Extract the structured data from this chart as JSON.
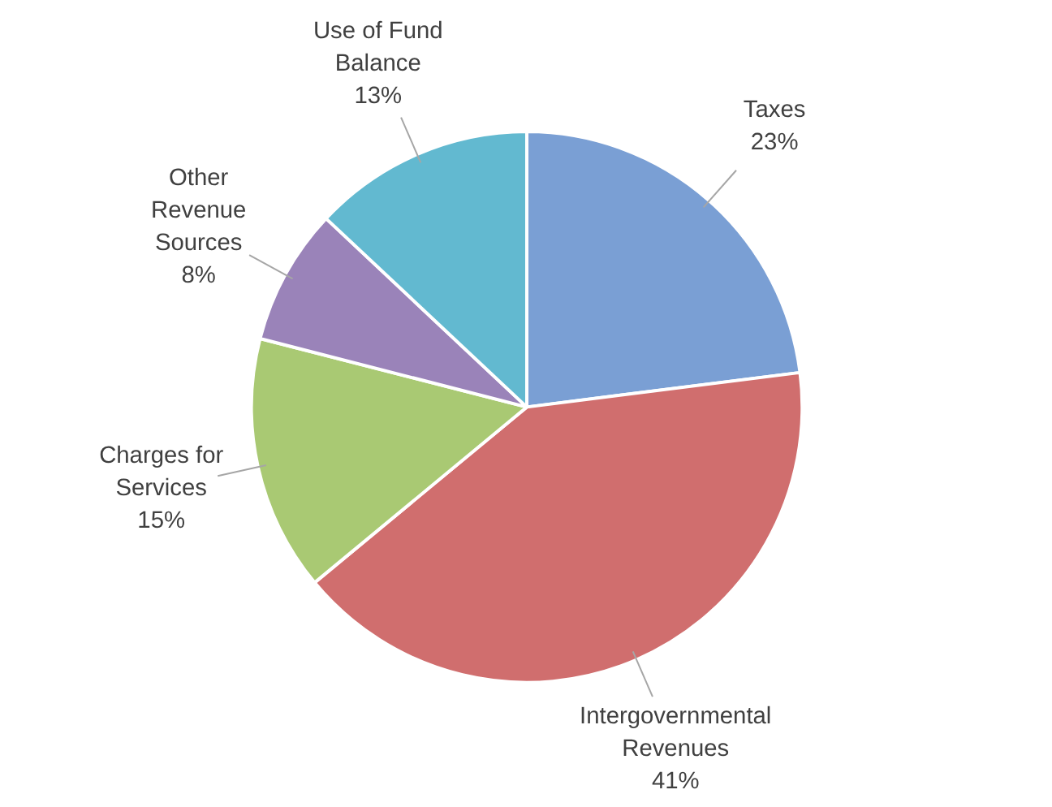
{
  "chart_data": {
    "type": "pie",
    "categories": [
      "Taxes",
      "Intergovernmental Revenues",
      "Charges for Services",
      "Other Revenue Sources",
      "Use of Fund Balance"
    ],
    "values": [
      23,
      41,
      15,
      8,
      13
    ],
    "colors": [
      "#7a9fd4",
      "#d06e6e",
      "#a9c973",
      "#9a83b9",
      "#62b9d0"
    ],
    "value_labels": [
      "23%",
      "41%",
      "15%",
      "8%",
      "13%"
    ]
  }
}
